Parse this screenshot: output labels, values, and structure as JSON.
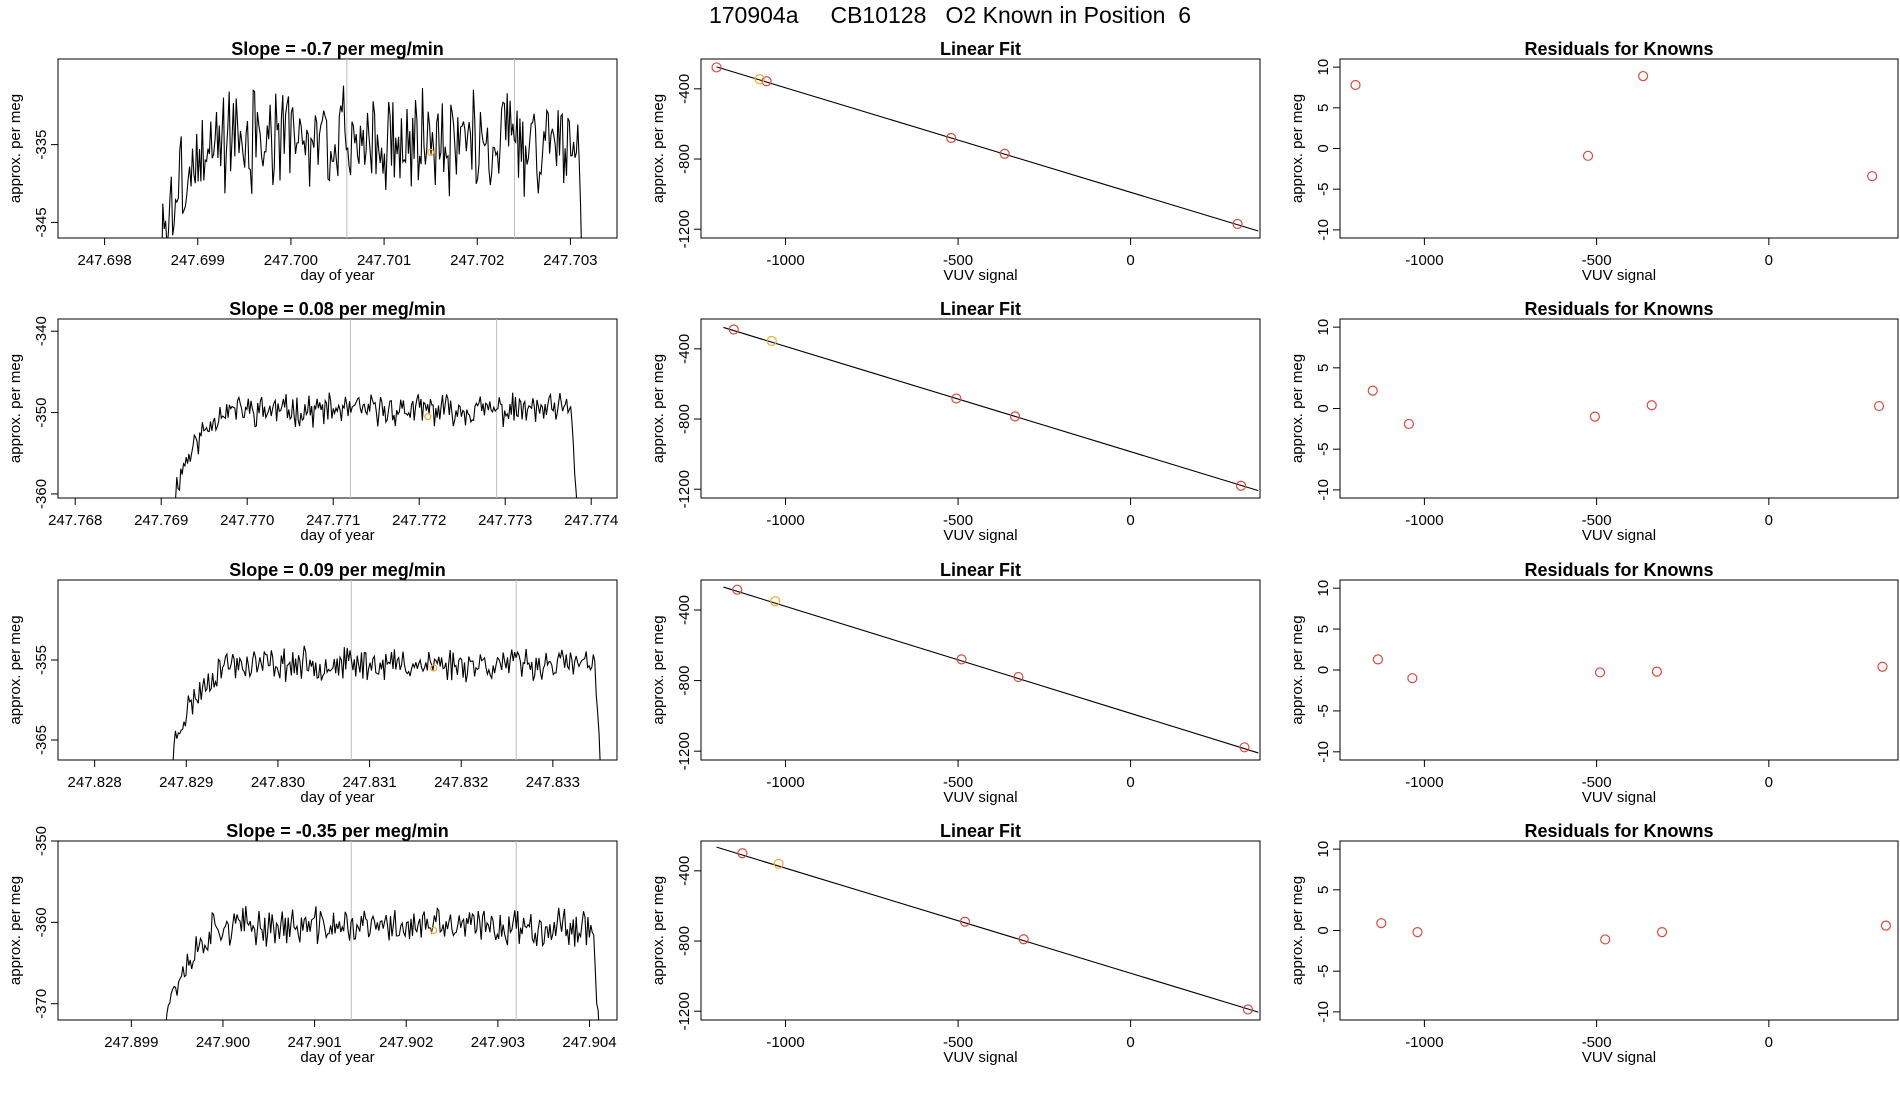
{
  "page": {
    "title": "170904a     CB10128   O2 Known in Position  6"
  },
  "colors": {
    "trace": "#000000",
    "gridline": "#bebebe",
    "point": "#e0473c",
    "highlight": "#f5a623",
    "axis": "#000000"
  },
  "chart_data": [
    {
      "type": "line",
      "row": 0,
      "col": 0,
      "title": "Slope =  -0.7  per meg/min",
      "xlabel": "day of year",
      "ylabel": "approx. per meg",
      "xlim": [
        247.6975,
        247.7035
      ],
      "ylim": [
        -347,
        -324
      ],
      "xticks": [
        247.698,
        247.699,
        247.7,
        247.701,
        247.702,
        247.703
      ],
      "xtick_labels": [
        "247.698",
        "247.699",
        "247.700",
        "247.701",
        "247.702",
        "247.703"
      ],
      "yticks": [
        -335,
        -345
      ],
      "ytick_labels": [
        "-335",
        "-345"
      ],
      "vlines": [
        247.7006,
        247.7024
      ],
      "series_gen": {
        "x_start": 247.69861,
        "x_end": 247.70314,
        "plateau": -334.5,
        "rise": 0.45,
        "fall": 0.25,
        "baseline": -351,
        "noise": 5.0,
        "seed": 3,
        "n": 300
      },
      "highlight_point": {
        "x": 247.7015,
        "y": -336
      }
    },
    {
      "type": "scatter_fit",
      "row": 0,
      "col": 1,
      "title": "Linear Fit",
      "xlabel": "VUV signal",
      "ylabel": "approx. per meg",
      "xlim": [
        -1245,
        375
      ],
      "ylim": [
        -1250,
        -230
      ],
      "xticks": [
        -1000,
        -500,
        0
      ],
      "xtick_labels": [
        "-1000",
        "-500",
        "0"
      ],
      "yticks": [
        -400,
        -800,
        -1200
      ],
      "ytick_labels": [
        "-400",
        "-800",
        "-1200"
      ],
      "fit": {
        "x0": -1200,
        "y0": -275,
        "x1": 370,
        "y1": -1210
      },
      "points": [
        {
          "x": -1200,
          "y": -278
        },
        {
          "x": -1055,
          "y": -357
        },
        {
          "x": -520,
          "y": -680
        },
        {
          "x": -365,
          "y": -770
        },
        {
          "x": 310,
          "y": -1170
        }
      ],
      "highlight_points": [
        {
          "x": -1075,
          "y": -345
        }
      ]
    },
    {
      "type": "scatter",
      "row": 0,
      "col": 2,
      "title": "Residuals for Knowns",
      "xlabel": "VUV signal",
      "ylabel": "approx. per meg",
      "xlim": [
        -1245,
        375
      ],
      "ylim": [
        -11,
        11
      ],
      "xticks": [
        -1000,
        -500,
        0
      ],
      "xtick_labels": [
        "-1000",
        "-500",
        "0"
      ],
      "yticks": [
        10,
        5,
        0,
        -5,
        -10
      ],
      "ytick_labels": [
        "10",
        "5",
        "0",
        "-5",
        "-10"
      ],
      "points": [
        {
          "x": -1200,
          "y": 7.8
        },
        {
          "x": -525,
          "y": -0.9
        },
        {
          "x": -365,
          "y": 8.9
        },
        {
          "x": 300,
          "y": -3.4
        }
      ]
    },
    {
      "type": "line",
      "row": 1,
      "col": 0,
      "title": "Slope =  0.08  per meg/min",
      "xlabel": "day of year",
      "ylabel": "approx. per meg",
      "xlim": [
        247.7678,
        247.7743
      ],
      "ylim": [
        -360.5,
        -338.5
      ],
      "xticks": [
        247.768,
        247.769,
        247.77,
        247.771,
        247.772,
        247.773,
        247.774
      ],
      "xtick_labels": [
        "247.768",
        "247.769",
        "247.770",
        "247.771",
        "247.772",
        "247.773",
        "247.774"
      ],
      "yticks": [
        -340,
        -350,
        -360
      ],
      "ytick_labels": [
        "-340",
        "-350",
        "-360"
      ],
      "vlines": [
        247.7712,
        247.7729
      ],
      "series_gen": {
        "x_start": 247.76915,
        "x_end": 247.77384,
        "plateau": -349.7,
        "rise": 0.5,
        "fall": 0.25,
        "baseline": -362,
        "noise": 1.5,
        "seed": 11,
        "n": 300
      },
      "highlight_point": {
        "x": 247.7721,
        "y": -350.5
      }
    },
    {
      "type": "scatter_fit",
      "row": 1,
      "col": 1,
      "title": "Linear Fit",
      "xlabel": "VUV signal",
      "ylabel": "approx. per meg",
      "xlim": [
        -1245,
        375
      ],
      "ylim": [
        -1250,
        -230
      ],
      "xticks": [
        -1000,
        -500,
        0
      ],
      "xtick_labels": [
        "-1000",
        "-500",
        "0"
      ],
      "yticks": [
        -400,
        -800,
        -1200
      ],
      "ytick_labels": [
        "-400",
        "-800",
        "-1200"
      ],
      "fit": {
        "x0": -1180,
        "y0": -278,
        "x1": 370,
        "y1": -1208
      },
      "points": [
        {
          "x": -1150,
          "y": -290
        },
        {
          "x": -505,
          "y": -683
        },
        {
          "x": -335,
          "y": -785
        },
        {
          "x": 320,
          "y": -1180
        }
      ],
      "highlight_points": [
        {
          "x": -1040,
          "y": -355
        }
      ]
    },
    {
      "type": "scatter",
      "row": 1,
      "col": 2,
      "title": "Residuals for Knowns",
      "xlabel": "VUV signal",
      "ylabel": "approx. per meg",
      "xlim": [
        -1245,
        375
      ],
      "ylim": [
        -11,
        11
      ],
      "xticks": [
        -1000,
        -500,
        0
      ],
      "xtick_labels": [
        "-1000",
        "-500",
        "0"
      ],
      "yticks": [
        10,
        5,
        0,
        -5,
        -10
      ],
      "ytick_labels": [
        "10",
        "5",
        "0",
        "-5",
        "-10"
      ],
      "points": [
        {
          "x": -1150,
          "y": 2.2
        },
        {
          "x": -1045,
          "y": -1.9
        },
        {
          "x": -505,
          "y": -1.0
        },
        {
          "x": -340,
          "y": 0.4
        },
        {
          "x": 320,
          "y": 0.3
        }
      ]
    },
    {
      "type": "line",
      "row": 2,
      "col": 0,
      "title": "Slope =  0.09  per meg/min",
      "xlabel": "day of year",
      "ylabel": "approx. per meg",
      "xlim": [
        247.8276,
        247.8337
      ],
      "ylim": [
        -367.5,
        -345
      ],
      "xticks": [
        247.828,
        247.829,
        247.83,
        247.831,
        247.832,
        247.833
      ],
      "xtick_labels": [
        "247.828",
        "247.829",
        "247.830",
        "247.831",
        "247.832",
        "247.833"
      ],
      "yticks": [
        -355,
        -365
      ],
      "ytick_labels": [
        "-355",
        "-365"
      ],
      "vlines": [
        247.8308,
        247.8326
      ],
      "series_gen": {
        "x_start": 247.82885,
        "x_end": 247.83352,
        "plateau": -355.5,
        "rise": 0.5,
        "fall": 0.25,
        "baseline": -368,
        "noise": 1.6,
        "seed": 23,
        "n": 300
      },
      "highlight_point": {
        "x": 247.8317,
        "y": -356
      }
    },
    {
      "type": "scatter_fit",
      "row": 2,
      "col": 1,
      "title": "Linear Fit",
      "xlabel": "VUV signal",
      "ylabel": "approx. per meg",
      "xlim": [
        -1245,
        375
      ],
      "ylim": [
        -1250,
        -230
      ],
      "xticks": [
        -1000,
        -500,
        0
      ],
      "xtick_labels": [
        "-1000",
        "-500",
        "0"
      ],
      "yticks": [
        -400,
        -800,
        -1200
      ],
      "ytick_labels": [
        "-400",
        "-800",
        "-1200"
      ],
      "fit": {
        "x0": -1180,
        "y0": -270,
        "x1": 370,
        "y1": -1210
      },
      "points": [
        {
          "x": -1140,
          "y": -285
        },
        {
          "x": -490,
          "y": -680
        },
        {
          "x": -325,
          "y": -780
        },
        {
          "x": 330,
          "y": -1178
        }
      ],
      "highlight_points": [
        {
          "x": -1030,
          "y": -350
        }
      ]
    },
    {
      "type": "scatter",
      "row": 2,
      "col": 2,
      "title": "Residuals for Knowns",
      "xlabel": "VUV signal",
      "ylabel": "approx. per meg",
      "xlim": [
        -1245,
        375
      ],
      "ylim": [
        -11,
        11
      ],
      "xticks": [
        -1000,
        -500,
        0
      ],
      "xtick_labels": [
        "-1000",
        "-500",
        "0"
      ],
      "yticks": [
        10,
        5,
        0,
        -5,
        -10
      ],
      "ytick_labels": [
        "10",
        "5",
        "0",
        "-5",
        "-10"
      ],
      "points": [
        {
          "x": -1135,
          "y": 1.3
        },
        {
          "x": -1035,
          "y": -1.0
        },
        {
          "x": -490,
          "y": -0.3
        },
        {
          "x": -325,
          "y": -0.2
        },
        {
          "x": 330,
          "y": 0.4
        }
      ]
    },
    {
      "type": "line",
      "row": 3,
      "col": 0,
      "title": "Slope =  -0.35  per meg/min",
      "xlabel": "day of year",
      "ylabel": "approx. per meg",
      "xlim": [
        247.8982,
        247.9043
      ],
      "ylim": [
        -372,
        -350
      ],
      "xticks": [
        247.899,
        247.9,
        247.901,
        247.902,
        247.903,
        247.904
      ],
      "xtick_labels": [
        "247.899",
        "247.900",
        "247.901",
        "247.902",
        "247.903",
        "247.904"
      ],
      "yticks": [
        -350,
        -360,
        -370
      ],
      "ytick_labels": [
        "-350",
        "-360",
        "-370"
      ],
      "vlines": [
        247.9014,
        247.9032
      ],
      "series_gen": {
        "x_start": 247.89934,
        "x_end": 247.90411,
        "plateau": -360.5,
        "rise": 0.55,
        "fall": 0.25,
        "baseline": -374,
        "noise": 1.8,
        "seed": 37,
        "n": 300
      },
      "highlight_point": {
        "x": 247.9023,
        "y": -361
      }
    },
    {
      "type": "scatter_fit",
      "row": 3,
      "col": 1,
      "title": "Linear Fit",
      "xlabel": "VUV signal",
      "ylabel": "approx. per meg",
      "xlim": [
        -1245,
        375
      ],
      "ylim": [
        -1250,
        -230
      ],
      "xticks": [
        -1000,
        -500,
        0
      ],
      "xtick_labels": [
        "-1000",
        "-500",
        "0"
      ],
      "yticks": [
        -400,
        -800,
        -1200
      ],
      "ytick_labels": [
        "-400",
        "-800",
        "-1200"
      ],
      "fit": {
        "x0": -1200,
        "y0": -265,
        "x1": 370,
        "y1": -1205
      },
      "points": [
        {
          "x": -1125,
          "y": -300
        },
        {
          "x": -480,
          "y": -690
        },
        {
          "x": -310,
          "y": -790
        },
        {
          "x": 340,
          "y": -1190
        }
      ],
      "highlight_points": [
        {
          "x": -1020,
          "y": -360
        }
      ]
    },
    {
      "type": "scatter",
      "row": 3,
      "col": 2,
      "title": "Residuals for Knowns",
      "xlabel": "VUV signal",
      "ylabel": "approx. per meg",
      "xlim": [
        -1245,
        375
      ],
      "ylim": [
        -11,
        11
      ],
      "xticks": [
        -1000,
        -500,
        0
      ],
      "xtick_labels": [
        "-1000",
        "-500",
        "0"
      ],
      "yticks": [
        10,
        5,
        0,
        -5,
        -10
      ],
      "ytick_labels": [
        "10",
        "5",
        "0",
        "-5",
        "-10"
      ],
      "points": [
        {
          "x": -1125,
          "y": 0.9
        },
        {
          "x": -1020,
          "y": -0.2
        },
        {
          "x": -475,
          "y": -1.1
        },
        {
          "x": -310,
          "y": -0.2
        },
        {
          "x": 340,
          "y": 0.6
        }
      ]
    }
  ]
}
